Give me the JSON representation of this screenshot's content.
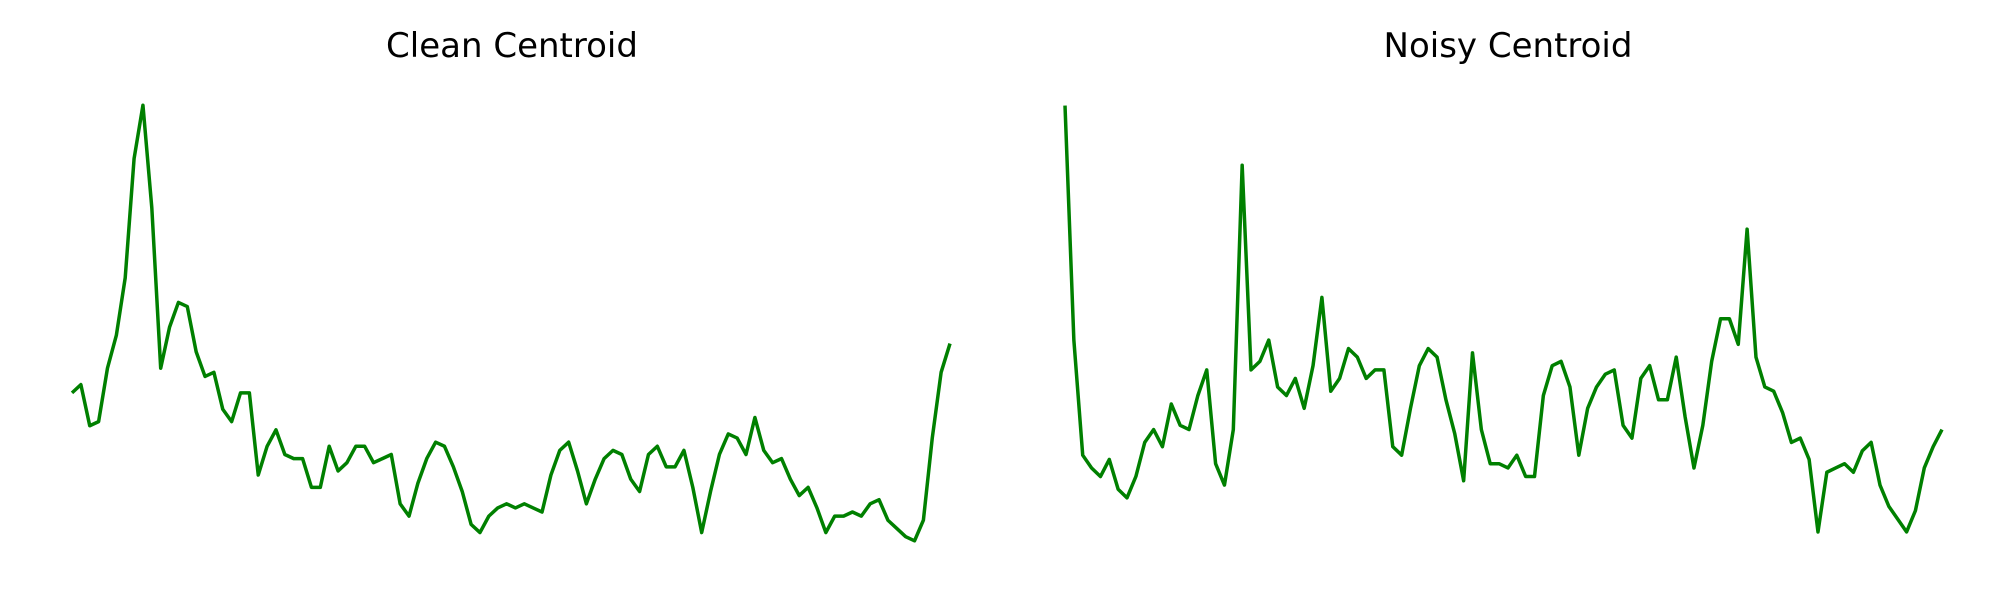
{
  "chart_data": [
    {
      "type": "line",
      "title": "Clean Centroid",
      "axes_visible": false,
      "grid": false,
      "color": "#008000",
      "x": [
        0,
        1,
        2,
        3,
        4,
        5,
        6,
        7,
        8,
        9,
        10,
        11,
        12,
        13,
        14,
        15,
        16,
        17,
        18,
        19,
        20,
        21,
        22,
        23,
        24,
        25,
        26,
        27,
        28,
        29,
        30,
        31,
        32,
        33,
        34,
        35,
        36,
        37,
        38,
        39,
        40,
        41,
        42,
        43,
        44,
        45,
        46,
        47,
        48,
        49,
        50,
        51,
        52,
        53,
        54,
        55,
        56,
        57,
        58,
        59,
        60,
        61,
        62,
        63,
        64,
        65,
        66,
        67,
        68,
        69,
        70,
        71,
        72,
        73,
        74,
        75,
        76,
        77,
        78,
        79,
        80,
        81,
        82,
        83,
        84,
        85,
        86,
        87,
        88,
        89,
        90,
        91,
        92,
        93,
        94,
        95,
        96,
        97,
        98,
        99
      ],
      "series": [
        {
          "values": [
            0.3,
            0.32,
            0.22,
            0.23,
            0.36,
            0.44,
            0.58,
            0.87,
            1.0,
            0.75,
            0.36,
            0.46,
            0.52,
            0.51,
            0.4,
            0.34,
            0.35,
            0.26,
            0.23,
            0.3,
            0.3,
            0.1,
            0.17,
            0.21,
            0.15,
            0.14,
            0.14,
            0.07,
            0.07,
            0.17,
            0.11,
            0.13,
            0.17,
            0.17,
            0.13,
            0.14,
            0.15,
            0.03,
            0.0,
            0.08,
            0.14,
            0.18,
            0.17,
            0.12,
            0.06,
            -0.02,
            -0.04,
            0.0,
            0.02,
            0.03,
            0.02,
            0.03,
            0.02,
            0.01,
            0.1,
            0.16,
            0.18,
            0.11,
            0.03,
            0.09,
            0.14,
            0.16,
            0.15,
            0.09,
            0.06,
            0.15,
            0.17,
            0.12,
            0.12,
            0.16,
            0.07,
            -0.04,
            0.06,
            0.15,
            0.2,
            0.19,
            0.15,
            0.24,
            0.16,
            0.13,
            0.14,
            0.09,
            0.05,
            0.07,
            0.02,
            -0.04,
            0.0,
            0.0,
            0.01,
            0.0,
            0.03,
            0.04,
            -0.01,
            -0.03,
            -0.05,
            -0.06,
            -0.01,
            0.19,
            0.35,
            0.42
          ]
        }
      ],
      "ylim": [
        -0.08,
        1.02
      ]
    },
    {
      "type": "line",
      "title": "Noisy Centroid",
      "axes_visible": false,
      "grid": false,
      "color": "#008000",
      "x": [
        0,
        1,
        2,
        3,
        4,
        5,
        6,
        7,
        8,
        9,
        10,
        11,
        12,
        13,
        14,
        15,
        16,
        17,
        18,
        19,
        20,
        21,
        22,
        23,
        24,
        25,
        26,
        27,
        28,
        29,
        30,
        31,
        32,
        33,
        34,
        35,
        36,
        37,
        38,
        39,
        40,
        41,
        42,
        43,
        44,
        45,
        46,
        47,
        48,
        49,
        50,
        51,
        52,
        53,
        54,
        55,
        56,
        57,
        58,
        59,
        60,
        61,
        62,
        63,
        64,
        65,
        66,
        67,
        68,
        69,
        70,
        71,
        72,
        73,
        74,
        75,
        76,
        77,
        78,
        79,
        80,
        81,
        82,
        83,
        84,
        85,
        86,
        87,
        88,
        89,
        90,
        91,
        92,
        93,
        94,
        95,
        96,
        97,
        98,
        99
      ],
      "series": [
        {
          "values": [
            1.0,
            0.45,
            0.18,
            0.15,
            0.13,
            0.17,
            0.1,
            0.08,
            0.13,
            0.21,
            0.24,
            0.2,
            0.3,
            0.25,
            0.24,
            0.32,
            0.38,
            0.16,
            0.11,
            0.24,
            0.86,
            0.38,
            0.4,
            0.45,
            0.34,
            0.32,
            0.36,
            0.29,
            0.39,
            0.55,
            0.33,
            0.36,
            0.43,
            0.41,
            0.36,
            0.38,
            0.38,
            0.2,
            0.18,
            0.29,
            0.39,
            0.43,
            0.41,
            0.31,
            0.23,
            0.12,
            0.42,
            0.24,
            0.16,
            0.16,
            0.15,
            0.18,
            0.13,
            0.13,
            0.32,
            0.39,
            0.4,
            0.34,
            0.18,
            0.29,
            0.34,
            0.37,
            0.38,
            0.25,
            0.22,
            0.36,
            0.39,
            0.31,
            0.31,
            0.41,
            0.27,
            0.15,
            0.25,
            0.4,
            0.5,
            0.5,
            0.44,
            0.71,
            0.41,
            0.34,
            0.33,
            0.28,
            0.21,
            0.22,
            0.17,
            0.0,
            0.14,
            0.15,
            0.16,
            0.14,
            0.19,
            0.21,
            0.11,
            0.06,
            0.03,
            0.0,
            0.05,
            0.15,
            0.2,
            0.24
          ]
        }
      ],
      "ylim": [
        -0.04,
        1.02
      ]
    }
  ]
}
